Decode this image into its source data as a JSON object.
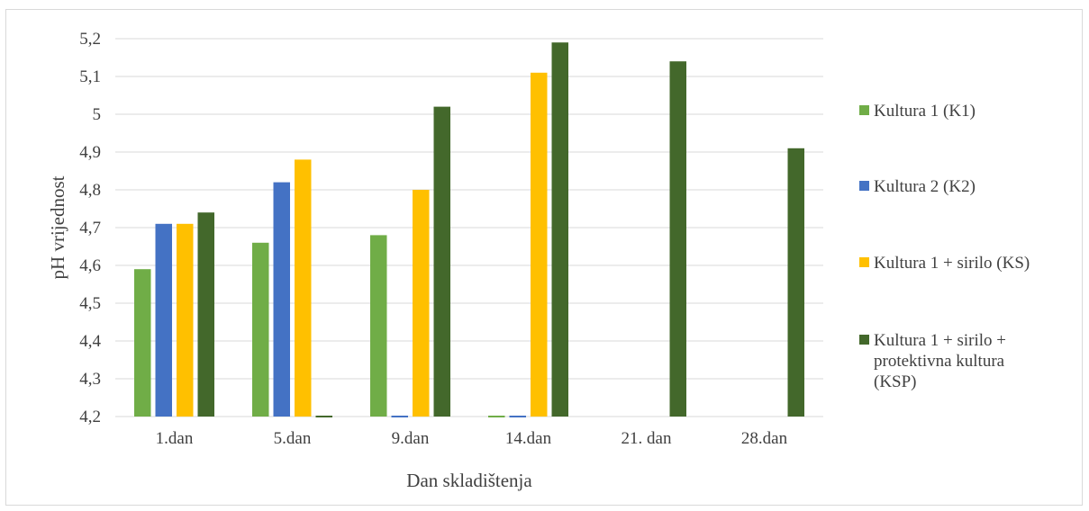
{
  "chart_data": {
    "type": "bar",
    "xlabel": "Dan skladištenja",
    "ylabel": "pH vrijednost",
    "ylim": [
      4.2,
      5.2
    ],
    "yticks": [
      "4,2",
      "4,3",
      "4,4",
      "4,5",
      "4,6",
      "4,7",
      "4,8",
      "4,9",
      "5",
      "5,1",
      "5,2"
    ],
    "categories": [
      "1.dan",
      "5.dan",
      "9.dan",
      "14.dan",
      "21. dan",
      "28.dan"
    ],
    "grid": true,
    "legend_position": "right",
    "series": [
      {
        "name": "Kultura 1 (K1)",
        "color": "#70ad47",
        "values": [
          4.59,
          4.66,
          4.68,
          4.2,
          null,
          null
        ]
      },
      {
        "name": "Kultura 2 (K2)",
        "color": "#4472c4",
        "values": [
          4.71,
          4.82,
          4.2,
          4.2,
          null,
          null
        ]
      },
      {
        "name": "Kultura 1 + sirilo (KS)",
        "color": "#ffc000",
        "values": [
          4.71,
          4.88,
          4.8,
          5.11,
          null,
          null
        ]
      },
      {
        "name": "Kultura 1 + sirilo + protektivna kultura (KSP)",
        "color": "#43682b",
        "values": [
          4.74,
          4.2,
          5.02,
          5.19,
          5.14,
          4.91
        ]
      }
    ],
    "legend_lines": [
      [
        "Kultura 1 (K1)"
      ],
      [
        "Kultura 2 (K2)"
      ],
      [
        "Kultura 1 + sirilo (KS)"
      ],
      [
        "Kultura 1 + sirilo +",
        "protektivna kultura",
        "(KSP)"
      ]
    ]
  }
}
